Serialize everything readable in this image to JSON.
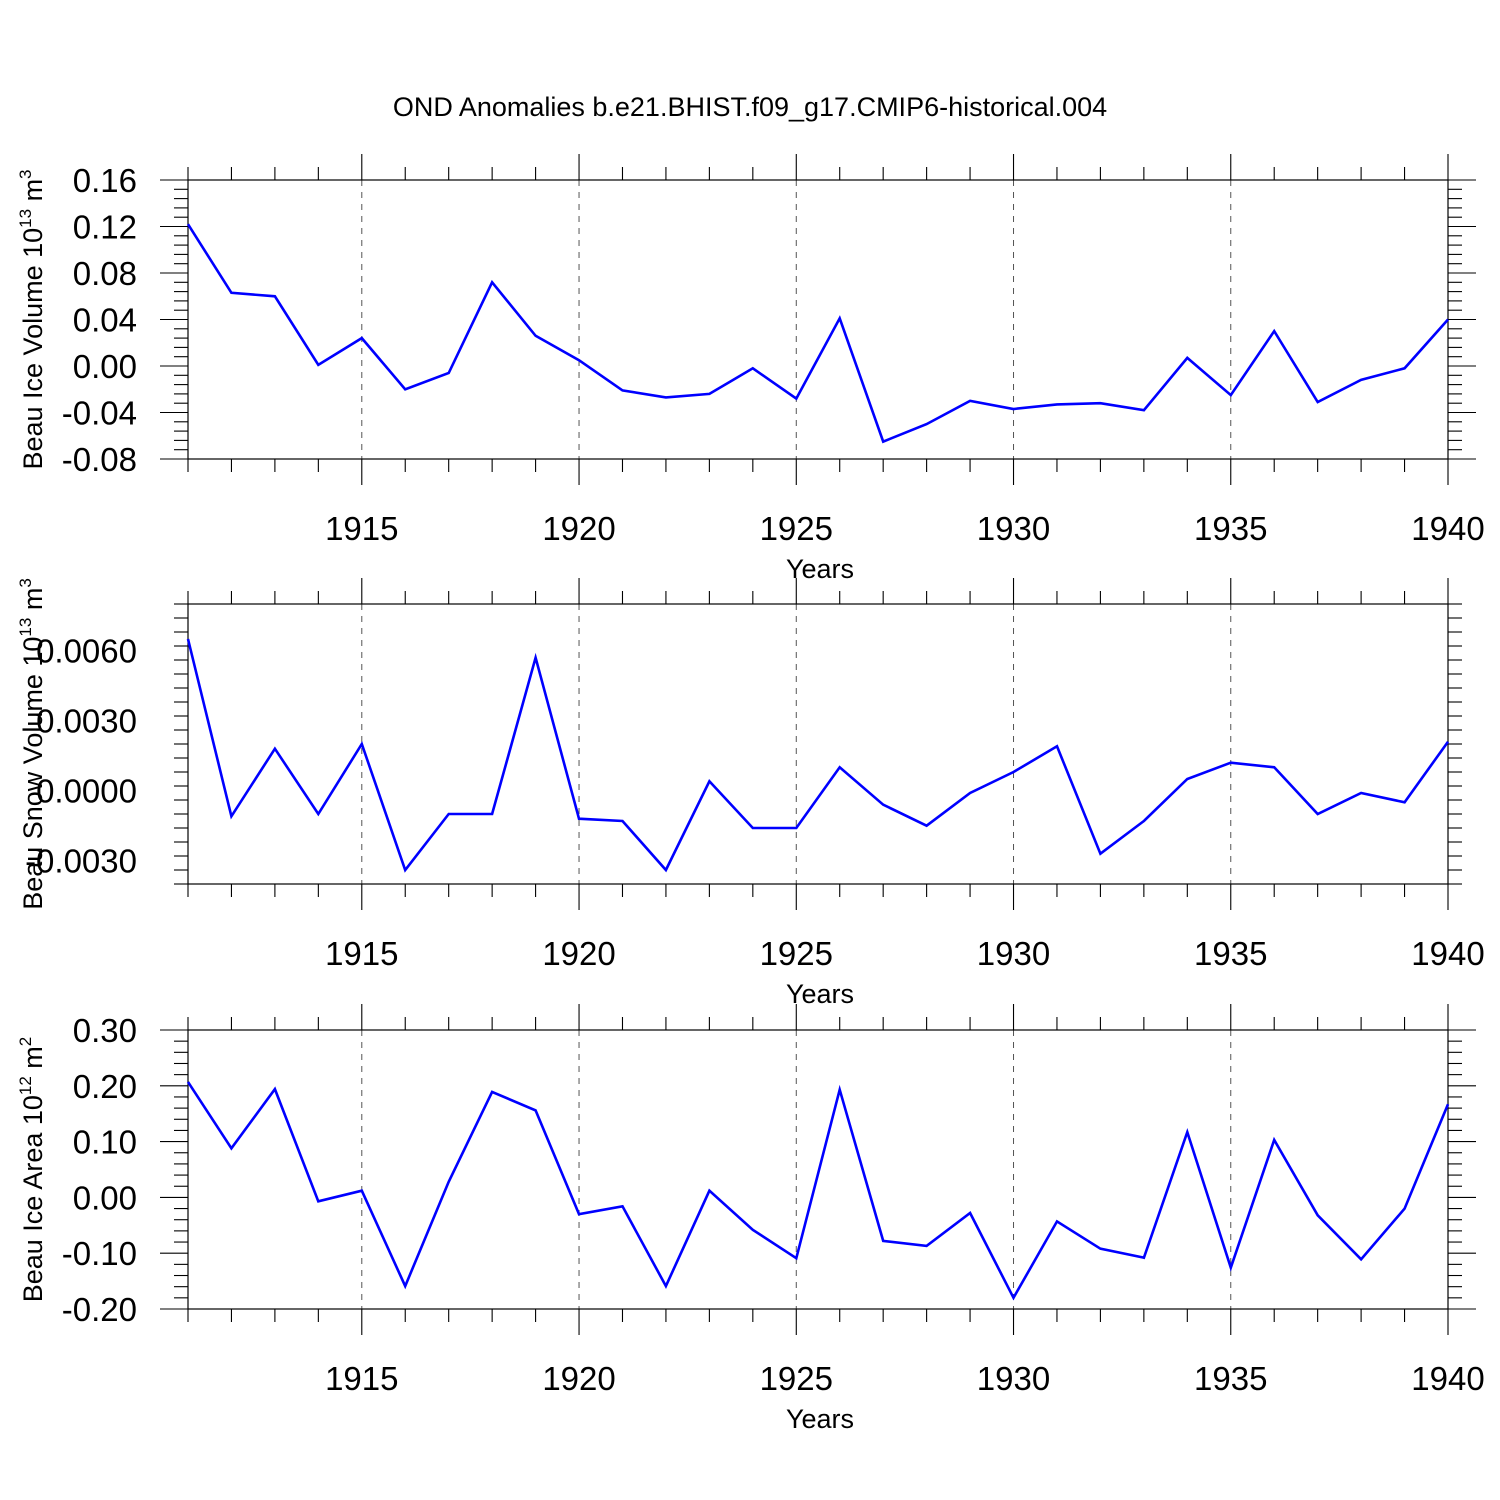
{
  "title": "OND Anomalies b.e21.BHIST.f09_g17.CMIP6-historical.004",
  "colors": {
    "line": "#0000ff",
    "axis": "#000000",
    "grid": "#555555"
  },
  "chart_data": [
    {
      "type": "line",
      "name": "ice-volume",
      "ylabel": {
        "main": "Beau Ice Volume 10",
        "sup": "13",
        "unit": " m",
        "unit_sup": "3"
      },
      "xlabel": "Years",
      "xlim": [
        1911,
        1940
      ],
      "ylim": [
        -0.08,
        0.16
      ],
      "yticks": [
        -0.08,
        -0.04,
        0.0,
        0.04,
        0.08,
        0.12,
        0.16
      ],
      "ytick_labels": [
        "-0.08",
        "-0.04",
        "0.00",
        "0.04",
        "0.08",
        "0.12",
        "0.16"
      ],
      "xticks": [
        1915,
        1920,
        1925,
        1930,
        1935,
        1940
      ],
      "xtick_labels": [
        "1915",
        "1920",
        "1925",
        "1930",
        "1935",
        "1940"
      ],
      "x": [
        1911,
        1912,
        1913,
        1914,
        1915,
        1916,
        1917,
        1918,
        1919,
        1920,
        1921,
        1922,
        1923,
        1924,
        1925,
        1926,
        1927,
        1928,
        1929,
        1930,
        1931,
        1932,
        1933,
        1934,
        1935,
        1936,
        1937,
        1938,
        1939,
        1940
      ],
      "values": [
        0.122,
        0.063,
        0.06,
        0.001,
        0.024,
        -0.02,
        -0.006,
        0.072,
        0.026,
        0.005,
        -0.021,
        -0.027,
        -0.024,
        -0.002,
        -0.028,
        0.041,
        -0.065,
        -0.05,
        -0.03,
        -0.037,
        -0.033,
        -0.032,
        -0.038,
        0.007,
        -0.025,
        0.03,
        -0.031,
        -0.012,
        -0.002,
        0.04
      ]
    },
    {
      "type": "line",
      "name": "snow-volume",
      "ylabel": {
        "main": "Beau Snow Volume 10",
        "sup": "13",
        "unit": " m",
        "unit_sup": "3"
      },
      "xlabel": "Years",
      "xlim": [
        1911,
        1940
      ],
      "ylim": [
        -0.004,
        0.008
      ],
      "yticks": [
        -0.003,
        0.0,
        0.003,
        0.006
      ],
      "ytick_labels": [
        "-0.0030",
        "0.0000",
        "0.0030",
        "0.0060"
      ],
      "xticks": [
        1915,
        1920,
        1925,
        1930,
        1935,
        1940
      ],
      "xtick_labels": [
        "1915",
        "1920",
        "1925",
        "1930",
        "1935",
        "1940"
      ],
      "x": [
        1911,
        1912,
        1913,
        1914,
        1915,
        1916,
        1917,
        1918,
        1919,
        1920,
        1921,
        1922,
        1923,
        1924,
        1925,
        1926,
        1927,
        1928,
        1929,
        1930,
        1931,
        1932,
        1933,
        1934,
        1935,
        1936,
        1937,
        1938,
        1939,
        1940
      ],
      "values": [
        0.0065,
        -0.0011,
        0.0018,
        -0.001,
        0.002,
        -0.0034,
        -0.001,
        -0.001,
        0.0057,
        -0.0012,
        -0.0013,
        -0.0034,
        0.0004,
        -0.0016,
        -0.0016,
        0.001,
        -0.0006,
        -0.0015,
        -0.0001,
        0.0008,
        0.0019,
        -0.0027,
        -0.0013,
        0.0005,
        0.0012,
        0.001,
        -0.001,
        -0.0001,
        -0.0005,
        0.0021
      ]
    },
    {
      "type": "line",
      "name": "ice-area",
      "ylabel": {
        "main": "Beau Ice Area 10",
        "sup": "12",
        "unit": " m",
        "unit_sup": "2"
      },
      "xlabel": "Years",
      "xlim": [
        1911,
        1940
      ],
      "ylim": [
        -0.2,
        0.3
      ],
      "yticks": [
        -0.2,
        -0.1,
        0.0,
        0.1,
        0.2,
        0.3
      ],
      "ytick_labels": [
        "-0.20",
        "-0.10",
        "0.00",
        "0.10",
        "0.20",
        "0.30"
      ],
      "xticks": [
        1915,
        1920,
        1925,
        1930,
        1935,
        1940
      ],
      "xtick_labels": [
        "1915",
        "1920",
        "1925",
        "1930",
        "1935",
        "1940"
      ],
      "x": [
        1911,
        1912,
        1913,
        1914,
        1915,
        1916,
        1917,
        1918,
        1919,
        1920,
        1921,
        1922,
        1923,
        1924,
        1925,
        1926,
        1927,
        1928,
        1929,
        1930,
        1931,
        1932,
        1933,
        1934,
        1935,
        1936,
        1937,
        1938,
        1939,
        1940
      ],
      "values": [
        0.207,
        0.088,
        0.194,
        -0.007,
        0.012,
        -0.159,
        0.028,
        0.189,
        0.156,
        -0.03,
        -0.016,
        -0.159,
        0.012,
        -0.058,
        -0.109,
        0.193,
        -0.078,
        -0.087,
        -0.028,
        -0.18,
        -0.043,
        -0.092,
        -0.108,
        0.117,
        -0.126,
        0.103,
        -0.032,
        -0.111,
        -0.02,
        0.167
      ]
    }
  ]
}
